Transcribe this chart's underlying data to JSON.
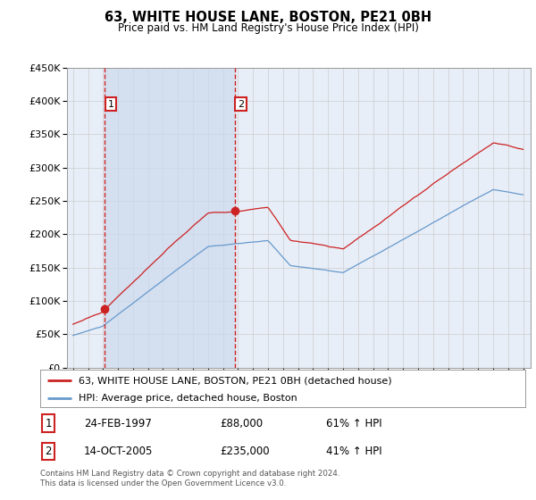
{
  "title": "63, WHITE HOUSE LANE, BOSTON, PE21 0BH",
  "subtitle": "Price paid vs. HM Land Registry's House Price Index (HPI)",
  "legend_line1": "63, WHITE HOUSE LANE, BOSTON, PE21 0BH (detached house)",
  "legend_line2": "HPI: Average price, detached house, Boston",
  "transaction1_date": "24-FEB-1997",
  "transaction1_price": 88000,
  "transaction1_label": "61% ↑ HPI",
  "transaction2_date": "14-OCT-2005",
  "transaction2_price": 235000,
  "transaction2_label": "41% ↑ HPI",
  "t1_year": 1997.12,
  "t2_year": 2005.79,
  "footer": "Contains HM Land Registry data © Crown copyright and database right 2024.\nThis data is licensed under the Open Government Licence v3.0.",
  "ylim": [
    0,
    450000
  ],
  "yticks": [
    0,
    50000,
    100000,
    150000,
    200000,
    250000,
    300000,
    350000,
    400000,
    450000
  ],
  "hpi_color": "#6699cc",
  "price_color": "#cc2222",
  "shading_color": "#ccd9ee",
  "plot_bg": "#e8eef8",
  "grid_color": "#cccccc"
}
